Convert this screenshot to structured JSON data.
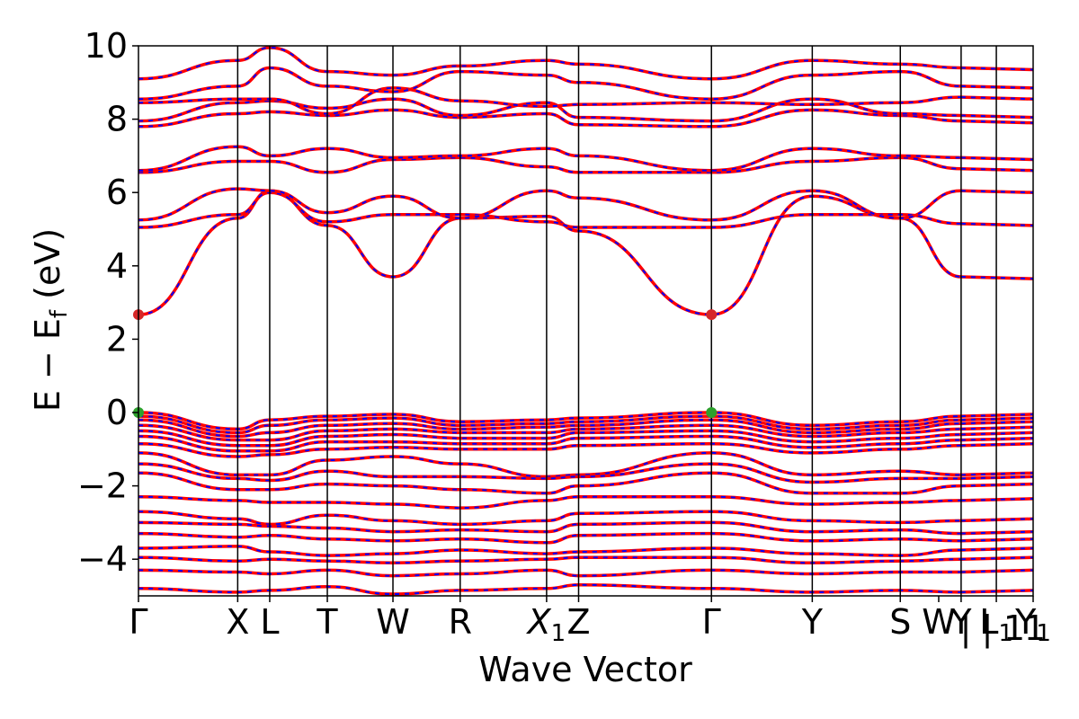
{
  "chart_data": {
    "type": "line",
    "title": "",
    "xlabel": "Wave Vector",
    "ylabel": "E − E",
    "ylabel_sub": "f",
    "ylabel_unit": "(eV)",
    "ylim": [
      -5,
      10
    ],
    "yticks": [
      10,
      8,
      6,
      4,
      2,
      0,
      -2,
      -4
    ],
    "ytick_labels": [
      "10",
      "8",
      "6",
      "4",
      "2",
      "0",
      "−2",
      "−4"
    ],
    "xlim": [
      0,
      5.59
    ],
    "x_ticks": [
      {
        "label": "Γ",
        "x": 0.0
      },
      {
        "label": "X",
        "x": 0.62
      },
      {
        "label": "L",
        "x": 0.82
      },
      {
        "label": "T",
        "x": 1.18
      },
      {
        "label": "W",
        "x": 1.59
      },
      {
        "label": "R",
        "x": 2.01
      },
      {
        "label": "X",
        "sub": "1",
        "x": 2.55,
        "italic": true
      },
      {
        "label": "Z",
        "x": 2.75
      },
      {
        "label": "Γ",
        "x": 3.58
      },
      {
        "label": "Y",
        "x": 4.21
      },
      {
        "label": "S",
        "x": 4.76
      },
      {
        "label": "W",
        "x": 5.0
      },
      {
        "label": "Y",
        "x": 5.14
      },
      {
        "label": "L",
        "sub": "1",
        "x": 5.36
      },
      {
        "label": "Y",
        "sub": "1",
        "x": 5.59
      }
    ],
    "x_tick_clutter": [
      "|",
      "|",
      "1",
      "1"
    ],
    "boundaries_x": [
      0.62,
      0.82,
      1.18,
      1.59,
      2.01,
      2.55,
      2.75,
      3.58,
      4.21,
      4.76,
      5.14,
      5.36
    ],
    "break_after_x": 5.14,
    "series": [
      {
        "style": "red-solid",
        "color": "#ff0000"
      },
      {
        "style": "blue-dashed",
        "color": "#0000ff"
      }
    ],
    "cbm": {
      "x": [
        0.0,
        3.58
      ],
      "y": 2.67,
      "color": "#d62728"
    },
    "vbm": {
      "x": [
        0.0,
        3.58
      ],
      "y": 0.0,
      "color": "#2ca02c"
    },
    "conduction_bands": [
      [
        2.67,
        5.3,
        6.05,
        5.1,
        3.7,
        5.3,
        5.35,
        4.95,
        2.67,
        5.9,
        5.3,
        3.7
      ],
      [
        5.05,
        5.4,
        6.0,
        5.2,
        5.4,
        5.4,
        5.2,
        5.05,
        5.05,
        5.4,
        5.4,
        5.15
      ],
      [
        5.25,
        6.1,
        6.05,
        5.45,
        5.9,
        5.3,
        6.05,
        5.85,
        5.25,
        6.05,
        5.3,
        6.05
      ],
      [
        6.55,
        6.85,
        6.85,
        6.55,
        6.9,
        6.95,
        6.7,
        6.55,
        6.55,
        6.85,
        6.95,
        6.65
      ],
      [
        6.6,
        7.25,
        7.0,
        7.2,
        6.95,
        7.0,
        7.2,
        7.0,
        6.6,
        7.2,
        7.0,
        6.95
      ],
      [
        7.8,
        8.15,
        8.2,
        8.1,
        8.25,
        8.05,
        8.15,
        7.85,
        7.8,
        8.25,
        8.1,
        7.95
      ],
      [
        7.95,
        8.45,
        8.5,
        8.3,
        8.55,
        8.1,
        8.45,
        8.05,
        7.95,
        8.55,
        8.15,
        8.1
      ],
      [
        8.45,
        8.55,
        8.55,
        8.15,
        8.85,
        8.5,
        8.35,
        8.4,
        8.45,
        8.4,
        8.45,
        8.6
      ],
      [
        8.55,
        8.9,
        9.4,
        8.9,
        8.75,
        9.3,
        9.2,
        9.0,
        8.55,
        9.2,
        9.3,
        8.9
      ],
      [
        9.1,
        9.6,
        9.95,
        9.3,
        9.2,
        9.45,
        9.6,
        9.5,
        9.1,
        9.6,
        9.5,
        9.4
      ]
    ],
    "valence_bands": [
      [
        0.0,
        -0.45,
        -0.2,
        -0.1,
        -0.05,
        -0.25,
        -0.2,
        -0.15,
        0.0,
        -0.35,
        -0.25,
        -0.1
      ],
      [
        -0.1,
        -0.55,
        -0.35,
        -0.2,
        -0.15,
        -0.35,
        -0.3,
        -0.25,
        -0.1,
        -0.45,
        -0.35,
        -0.2
      ],
      [
        -0.2,
        -0.65,
        -0.55,
        -0.35,
        -0.3,
        -0.45,
        -0.4,
        -0.35,
        -0.2,
        -0.55,
        -0.45,
        -0.3
      ],
      [
        -0.35,
        -0.75,
        -0.75,
        -0.5,
        -0.45,
        -0.55,
        -0.55,
        -0.45,
        -0.35,
        -0.65,
        -0.55,
        -0.45
      ],
      [
        -0.5,
        -0.9,
        -0.9,
        -0.65,
        -0.6,
        -0.7,
        -0.7,
        -0.55,
        -0.5,
        -0.8,
        -0.7,
        -0.6
      ],
      [
        -0.65,
        -1.05,
        -1.05,
        -0.8,
        -0.8,
        -0.85,
        -0.85,
        -0.7,
        -0.65,
        -0.95,
        -0.85,
        -0.75
      ],
      [
        -0.85,
        -1.2,
        -1.15,
        -1.0,
        -0.95,
        -1.0,
        -1.0,
        -0.9,
        -0.85,
        -1.1,
        -1.0,
        -0.9
      ],
      [
        -1.1,
        -1.7,
        -1.7,
        -1.3,
        -1.2,
        -1.4,
        -1.75,
        -1.7,
        -1.1,
        -1.7,
        -1.6,
        -1.7
      ],
      [
        -1.4,
        -1.8,
        -1.85,
        -1.6,
        -1.75,
        -1.75,
        -1.8,
        -1.75,
        -1.4,
        -1.9,
        -1.8,
        -1.8
      ],
      [
        -1.65,
        -2.1,
        -2.1,
        -1.95,
        -2.0,
        -2.1,
        -2.2,
        -2.0,
        -1.65,
        -2.2,
        -2.2,
        -2.0
      ],
      [
        -2.3,
        -2.4,
        -2.45,
        -2.45,
        -2.5,
        -2.6,
        -2.4,
        -2.3,
        -2.3,
        -2.5,
        -2.45,
        -2.4
      ],
      [
        -2.7,
        -2.9,
        -3.05,
        -2.8,
        -2.95,
        -3.05,
        -2.95,
        -2.75,
        -2.7,
        -2.95,
        -3.0,
        -2.95
      ],
      [
        -3.0,
        -3.05,
        -3.1,
        -3.15,
        -3.25,
        -3.2,
        -3.25,
        -3.05,
        -3.0,
        -3.25,
        -3.2,
        -3.3
      ],
      [
        -3.3,
        -3.4,
        -3.35,
        -3.45,
        -3.5,
        -3.45,
        -3.55,
        -3.35,
        -3.3,
        -3.5,
        -3.45,
        -3.5
      ],
      [
        -3.7,
        -3.65,
        -3.8,
        -3.9,
        -3.85,
        -3.75,
        -3.85,
        -3.8,
        -3.7,
        -3.85,
        -3.9,
        -3.75
      ],
      [
        -3.95,
        -4.05,
        -4.0,
        -4.05,
        -4.1,
        -4.05,
        -4.0,
        -3.95,
        -3.95,
        -4.1,
        -4.05,
        -4.0
      ],
      [
        -4.3,
        -4.35,
        -4.4,
        -4.3,
        -4.45,
        -4.4,
        -4.3,
        -4.45,
        -4.3,
        -4.4,
        -4.35,
        -4.35
      ],
      [
        -4.8,
        -4.9,
        -4.85,
        -4.75,
        -4.95,
        -4.85,
        -4.8,
        -4.7,
        -4.8,
        -4.9,
        -4.85,
        -4.9
      ]
    ]
  }
}
